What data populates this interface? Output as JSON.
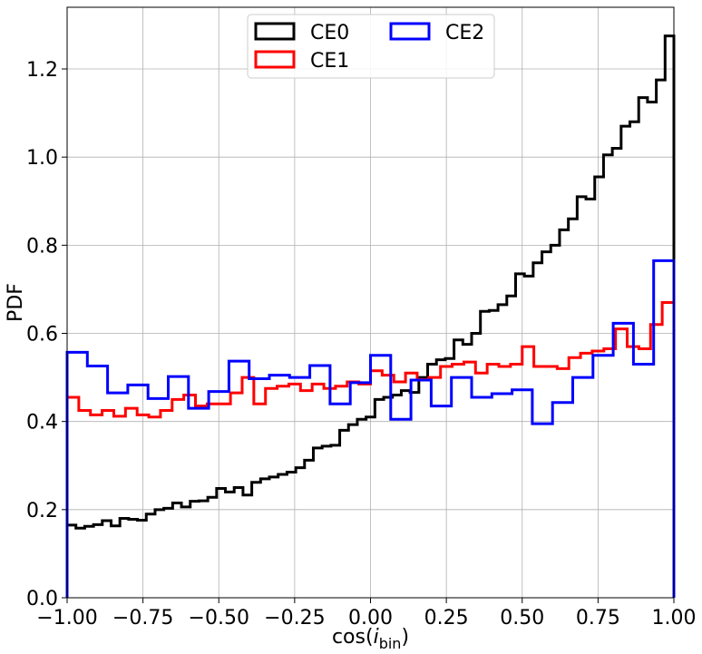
{
  "chart_data": {
    "type": "histogram-step",
    "xlabel": "cos(i_bin)",
    "xlabel_main": "cos(",
    "xlabel_italic": "i",
    "xlabel_sub": "bin",
    "xlabel_close": ")",
    "ylabel": "PDF",
    "xlim": [
      -1.0,
      1.0
    ],
    "ylim": [
      0.0,
      1.34
    ],
    "xticks": [
      -1.0,
      -0.75,
      -0.5,
      -0.25,
      0.0,
      0.25,
      0.5,
      0.75,
      1.0
    ],
    "xtick_labels": [
      "−1.00",
      "−0.75",
      "−0.50",
      "−0.25",
      "0.00",
      "0.25",
      "0.50",
      "0.75",
      "1.00"
    ],
    "yticks": [
      0.0,
      0.2,
      0.4,
      0.6,
      0.8,
      1.0,
      1.2
    ],
    "ytick_labels": [
      "0.0",
      "0.2",
      "0.4",
      "0.6",
      "0.8",
      "1.0",
      "1.2"
    ],
    "grid": true,
    "legend": {
      "placement": "upper-center",
      "columns": 2
    },
    "series": [
      {
        "name": "CE0",
        "color": "#000000",
        "bin_start": -1.0,
        "bin_end": 1.0,
        "values": [
          0.165,
          0.158,
          0.162,
          0.166,
          0.175,
          0.163,
          0.18,
          0.178,
          0.176,
          0.19,
          0.2,
          0.203,
          0.215,
          0.206,
          0.219,
          0.22,
          0.228,
          0.248,
          0.24,
          0.25,
          0.233,
          0.262,
          0.27,
          0.274,
          0.28,
          0.285,
          0.295,
          0.312,
          0.34,
          0.344,
          0.346,
          0.38,
          0.393,
          0.405,
          0.41,
          0.45,
          0.455,
          0.46,
          0.47,
          0.466,
          0.5,
          0.53,
          0.54,
          0.543,
          0.585,
          0.575,
          0.6,
          0.65,
          0.652,
          0.665,
          0.685,
          0.735,
          0.73,
          0.76,
          0.785,
          0.8,
          0.835,
          0.86,
          0.91,
          0.905,
          0.955,
          1.005,
          1.02,
          1.07,
          1.08,
          1.135,
          1.125,
          1.175,
          1.275
        ]
      },
      {
        "name": "CE1",
        "color": "#ff0000",
        "bin_start": -1.0,
        "bin_end": 1.0,
        "values": [
          0.455,
          0.425,
          0.415,
          0.425,
          0.412,
          0.43,
          0.415,
          0.41,
          0.425,
          0.45,
          0.46,
          0.435,
          0.44,
          0.44,
          0.465,
          0.5,
          0.44,
          0.475,
          0.48,
          0.485,
          0.47,
          0.485,
          0.475,
          0.48,
          0.49,
          0.485,
          0.515,
          0.505,
          0.49,
          0.51,
          0.495,
          0.5,
          0.525,
          0.53,
          0.535,
          0.51,
          0.53,
          0.525,
          0.53,
          0.57,
          0.525,
          0.525,
          0.52,
          0.545,
          0.555,
          0.56,
          0.565,
          0.61,
          0.57,
          0.565,
          0.62,
          0.67
        ]
      },
      {
        "name": "CE2",
        "color": "#0000ff",
        "bin_start": -1.0,
        "bin_end": 1.0,
        "values": [
          0.557,
          0.526,
          0.465,
          0.483,
          0.452,
          0.502,
          0.43,
          0.468,
          0.537,
          0.497,
          0.505,
          0.5,
          0.527,
          0.44,
          0.488,
          0.55,
          0.405,
          0.494,
          0.435,
          0.5,
          0.455,
          0.463,
          0.472,
          0.395,
          0.443,
          0.5,
          0.55,
          0.623,
          0.53,
          0.765
        ]
      }
    ]
  }
}
